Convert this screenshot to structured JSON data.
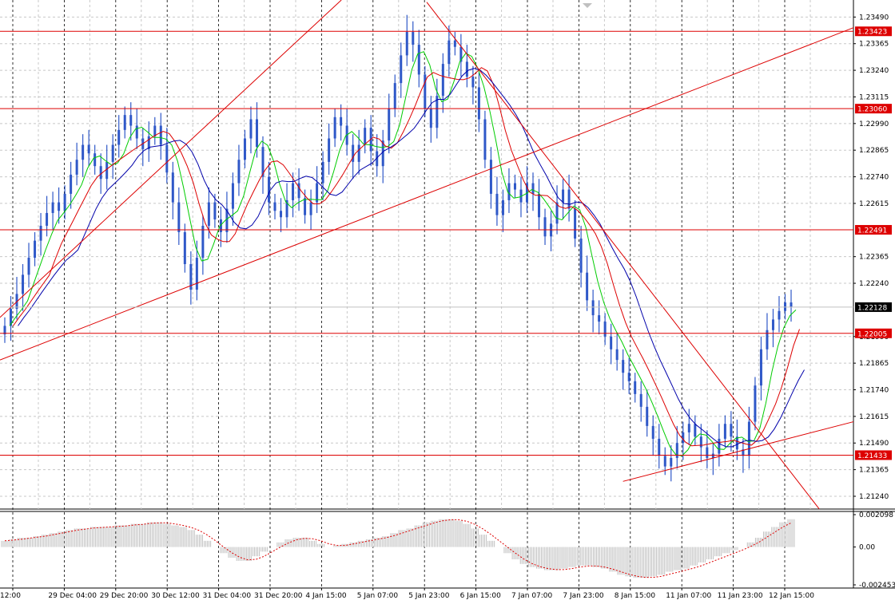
{
  "chart_data": [
    {
      "type": "candlestick",
      "instrument_panel": "main",
      "ylim": [
        1.2118,
        1.2357
      ],
      "y_ticks": [
        "1.23490",
        "1.23365",
        "1.23240",
        "1.23115",
        "1.22990",
        "1.22865",
        "1.22740",
        "1.22615",
        "1.22365",
        "1.22240",
        "1.21990",
        "1.21865",
        "1.21740",
        "1.21615",
        "1.21490",
        "1.21365",
        "1.21240"
      ],
      "x_labels": [
        "12:00",
        "29 Dec 04:00",
        "29 Dec 20:00",
        "30 Dec 12:00",
        "31 Dec 04:00",
        "31 Dec 20:00",
        "4 Jan 15:00",
        "5 Jan 07:00",
        "5 Jan 23:00",
        "6 Jan 15:00",
        "7 Jan 07:00",
        "7 Jan 23:00",
        "8 Jan 15:00",
        "11 Jan 07:00",
        "11 Jan 23:00",
        "12 Jan 15:00"
      ],
      "horizontal_levels": [
        {
          "label": "1.23423",
          "value": 1.23423
        },
        {
          "label": "1.23060",
          "value": 1.2306
        },
        {
          "label": "1.22491",
          "value": 1.22491
        },
        {
          "label": "1.22005",
          "value": 1.22005
        },
        {
          "label": "1.21433",
          "value": 1.21433
        }
      ],
      "current_price": {
        "label": "1.22128",
        "value": 1.22128
      },
      "close_series": [
        1.2204,
        1.2212,
        1.2219,
        1.2228,
        1.2236,
        1.2244,
        1.2251,
        1.2257,
        1.2262,
        1.2258,
        1.2266,
        1.2275,
        1.2282,
        1.2289,
        1.2285,
        1.2279,
        1.2273,
        1.2281,
        1.2289,
        1.2296,
        1.2303,
        1.2298,
        1.2292,
        1.2287,
        1.2293,
        1.2298,
        1.2289,
        1.2276,
        1.2262,
        1.2248,
        1.2233,
        1.2221,
        1.2236,
        1.2251,
        1.2262,
        1.2254,
        1.2248,
        1.2259,
        1.2271,
        1.2282,
        1.2292,
        1.2301,
        1.2288,
        1.2274,
        1.2262,
        1.2258,
        1.2255,
        1.2263,
        1.2271,
        1.2264,
        1.2256,
        1.2262,
        1.2271,
        1.2281,
        1.2292,
        1.2302,
        1.2298,
        1.2289,
        1.2281,
        1.2289,
        1.2297,
        1.2286,
        1.2279,
        1.2291,
        1.2306,
        1.2318,
        1.2331,
        1.2342,
        1.2336,
        1.2322,
        1.2306,
        1.2297,
        1.2312,
        1.2327,
        1.2338,
        1.2335,
        1.2328,
        1.2321,
        1.2316,
        1.2301,
        1.2282,
        1.2266,
        1.2256,
        1.2263,
        1.2271,
        1.2268,
        1.2262,
        1.2271,
        1.2266,
        1.2255,
        1.2246,
        1.2252,
        1.2262,
        1.2268,
        1.2259,
        1.2245,
        1.2229,
        1.2216,
        1.2209,
        1.2206,
        1.2199,
        1.2193,
        1.2188,
        1.2182,
        1.2178,
        1.2172,
        1.2166,
        1.2157,
        1.2151,
        1.2143,
        1.2138,
        1.2142,
        1.2149,
        1.2154,
        1.2158,
        1.2152,
        1.2147,
        1.2142,
        1.2144,
        1.2151,
        1.2158,
        1.2152,
        1.2146,
        1.2143,
        1.2159,
        1.2176,
        1.2193,
        1.2202,
        1.2207,
        1.2211,
        1.2215,
        1.2213
      ],
      "moving_averages": [
        {
          "color": "#00cc00"
        },
        {
          "color": "#dd0000"
        },
        {
          "color": "#0000aa"
        }
      ],
      "trendlines": [
        {
          "from": [
            0,
            1.2188
          ],
          "to": [
            1.0,
            1.2344
          ],
          "color": "#dd0000"
        },
        {
          "from": [
            0,
            1.2208
          ],
          "to": [
            0.4,
            1.2357
          ],
          "color": "#dd0000"
        },
        {
          "from": [
            0.5,
            1.2356
          ],
          "to": [
            0.96,
            1.2118
          ],
          "color": "#dd0000"
        },
        {
          "from": [
            0.73,
            1.2131
          ],
          "to": [
            1.0,
            1.2159
          ],
          "color": "#dd0000"
        }
      ]
    },
    {
      "type": "histogram",
      "instrument_panel": "oscillator",
      "ylim": [
        -0.002453,
        0.002098
      ],
      "y_ticks": [
        "0.002098",
        "0.00",
        "-0.002453"
      ],
      "values": [
        0.0004,
        0.0005,
        0.0006,
        0.0006,
        0.0007,
        0.0008,
        0.0009,
        0.001,
        0.0011,
        0.0012,
        0.0012,
        0.0013,
        0.0013,
        0.0013,
        0.0014,
        0.0014,
        0.0015,
        0.0015,
        0.0016,
        0.0016,
        0.0015,
        0.0014,
        0.0013,
        0.0011,
        0.0008,
        0.0004,
        0.0,
        -0.0004,
        -0.0007,
        -0.0009,
        -0.0009,
        -0.0006,
        -0.0003,
        0.0,
        0.0003,
        0.0005,
        0.0006,
        0.0006,
        0.0004,
        0.0002,
        0.0,
        0.0001,
        0.0002,
        0.0003,
        0.0004,
        0.0005,
        0.0006,
        0.0007,
        0.0009,
        0.0011,
        0.0012,
        0.0014,
        0.0016,
        0.0017,
        0.0018,
        0.0018,
        0.0017,
        0.0015,
        0.0012,
        0.0008,
        0.0004,
        0.0,
        -0.0004,
        -0.0008,
        -0.0011,
        -0.0013,
        -0.0014,
        -0.0015,
        -0.0015,
        -0.0014,
        -0.0013,
        -0.0012,
        -0.0012,
        -0.0013,
        -0.0014,
        -0.0016,
        -0.0018,
        -0.0019,
        -0.002,
        -0.002,
        -0.0019,
        -0.0018,
        -0.0016,
        -0.0015,
        -0.0014,
        -0.0012,
        -0.001,
        -0.0008,
        -0.0006,
        -0.0004,
        -0.0002,
        0.0,
        0.0003,
        0.0006,
        0.001,
        0.0013,
        0.0016,
        0.0018
      ],
      "signal_color": "#dd0000"
    }
  ]
}
